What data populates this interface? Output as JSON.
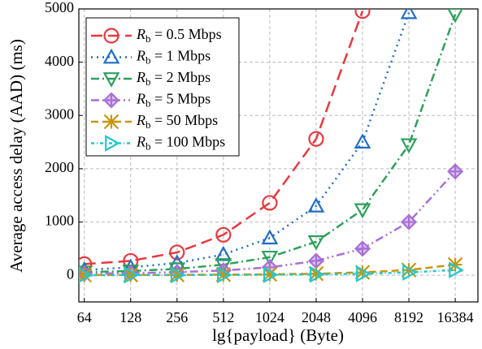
{
  "chart_data": {
    "type": "line",
    "xscale": "log2",
    "grid": true,
    "legend": "upper left",
    "xlabel": "lg{payload} (Byte)",
    "ylabel": "Average access delay (AAD) (ms)",
    "x": [
      64,
      128,
      256,
      512,
      1024,
      2048,
      4096,
      8192,
      16384
    ],
    "xlim": [
      59,
      23000
    ],
    "xticks": [
      64,
      128,
      256,
      512,
      1024,
      2048,
      4096,
      8192,
      16384
    ],
    "ylim": [
      -500,
      5000
    ],
    "yticks": [
      0,
      1000,
      2000,
      3000,
      4000,
      5000
    ],
    "series": [
      {
        "name": "Rb = 0.5 Mbps",
        "color": "#e8393f",
        "values": [
          210,
          270,
          430,
          760,
          1360,
          2560,
          4960,
          null,
          null
        ]
      },
      {
        "name": "Rb = 1 Mbps",
        "color": "#1f6fc5",
        "values": [
          100,
          150,
          230,
          390,
          700,
          1300,
          2500,
          4930,
          null
        ]
      },
      {
        "name": "Rb = 2 Mbps",
        "color": "#2ca05a",
        "values": [
          60,
          80,
          120,
          200,
          340,
          630,
          1230,
          2450,
          4900
        ]
      },
      {
        "name": "Rb = 5 Mbps",
        "color": "#a86fd8",
        "values": [
          30,
          40,
          60,
          90,
          150,
          270,
          500,
          1000,
          1950
        ]
      },
      {
        "name": "Rb = 50 Mbps",
        "color": "#c8960a",
        "values": [
          5,
          6,
          8,
          12,
          18,
          30,
          55,
          100,
          200
        ]
      },
      {
        "name": "Rb = 100 Mbps",
        "color": "#1fc8d0",
        "values": [
          3,
          4,
          5,
          7,
          10,
          16,
          28,
          55,
          100
        ]
      }
    ]
  }
}
